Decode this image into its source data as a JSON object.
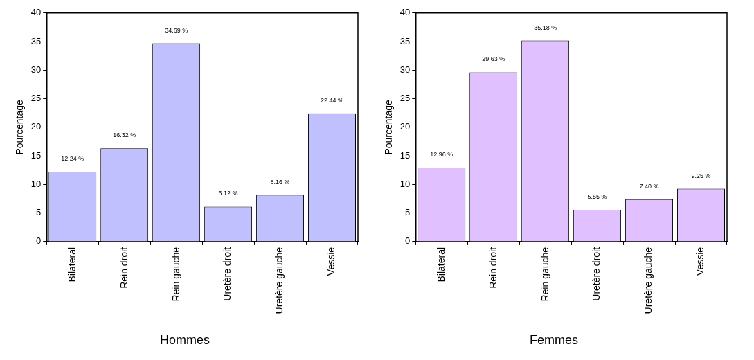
{
  "chart_data": [
    {
      "type": "bar",
      "title": "Hommes",
      "ylabel": "Pourcentage",
      "categories": [
        "Bilateral",
        "Rein droit",
        "Rein gauche",
        "Uretère droit",
        "Uretère gauche",
        "Vessie"
      ],
      "values": [
        12.24,
        16.32,
        34.69,
        6.12,
        8.16,
        22.44
      ],
      "value_labels": [
        "12.24 %",
        "16.32 %",
        "34.69 %",
        "6.12 %",
        "8.16 %",
        "22.44 %"
      ],
      "color": "#c0c0ff",
      "ylim": [
        0,
        40
      ],
      "yticks": [
        0,
        5,
        10,
        15,
        20,
        25,
        30,
        35,
        40
      ],
      "grid": false,
      "legend": false
    },
    {
      "type": "bar",
      "title": "Femmes",
      "ylabel": "Pourcentage",
      "categories": [
        "Bilateral",
        "Rein droit",
        "Rein gauche",
        "Uretère droit",
        "Uretère gauche",
        "Vessie"
      ],
      "values": [
        12.96,
        29.63,
        35.18,
        5.55,
        7.4,
        9.25
      ],
      "value_labels": [
        "12.96 %",
        "29.63 %",
        "35.18 %",
        "5.55 %",
        "7.40 %",
        "9.25 %"
      ],
      "color": "#e0c0ff",
      "ylim": [
        0,
        40
      ],
      "yticks": [
        0,
        5,
        10,
        15,
        20,
        25,
        30,
        35,
        40
      ],
      "grid": false,
      "legend": false
    }
  ]
}
